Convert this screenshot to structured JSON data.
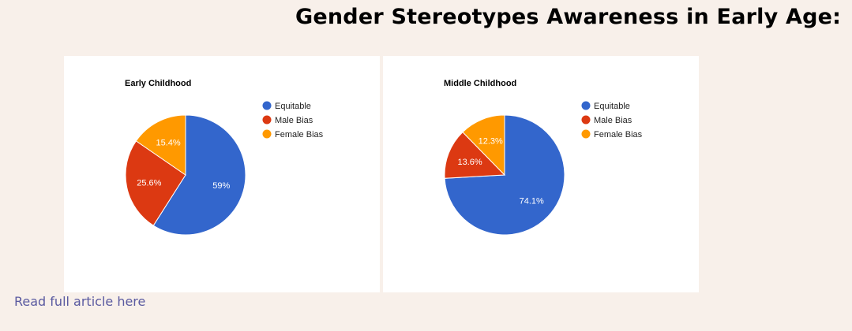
{
  "page": {
    "title": "Gender Stereotypes Awareness in Early Age:",
    "read_more": "Read full article here"
  },
  "colors": {
    "background": "#f8f0ea",
    "card": "#ffffff",
    "link": "#5a5aa0"
  },
  "chart_data": [
    {
      "type": "pie",
      "title": "Early Childhood",
      "legend_position": "right",
      "categories": [
        "Equitable",
        "Male Bias",
        "Female Bias"
      ],
      "values": [
        59,
        25.6,
        15.4
      ],
      "labels": [
        "59%",
        "25.6%",
        "15.4%"
      ],
      "colors": [
        "#3366cc",
        "#dc3912",
        "#ff9900"
      ]
    },
    {
      "type": "pie",
      "title": "Middle Childhood",
      "legend_position": "right",
      "categories": [
        "Equitable",
        "Male Bias",
        "Female Bias"
      ],
      "values": [
        74.1,
        13.6,
        12.3
      ],
      "labels": [
        "74.1%",
        "13.6%",
        "12.3%"
      ],
      "colors": [
        "#3366cc",
        "#dc3912",
        "#ff9900"
      ]
    }
  ]
}
